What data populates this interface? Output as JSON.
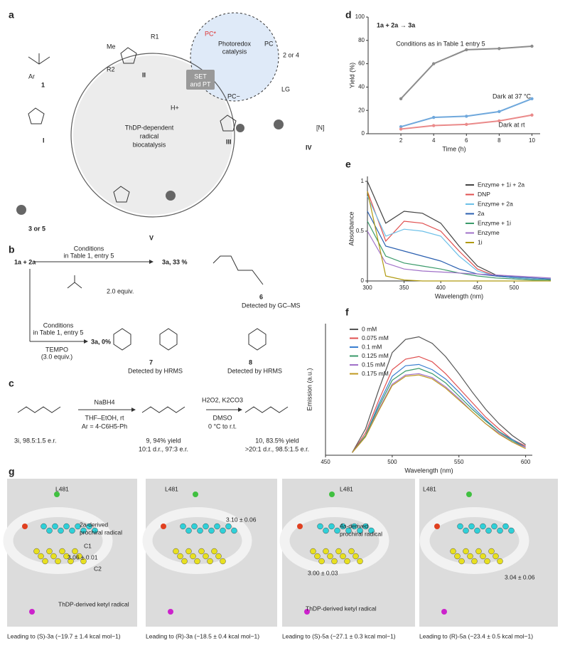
{
  "panel_labels": [
    "a",
    "b",
    "c",
    "d",
    "e",
    "f",
    "g"
  ],
  "panel_a": {
    "pc_star": "PC*",
    "photoredox": [
      "Photoredox",
      "catalysis"
    ],
    "pc": "PC",
    "reagent": "2 or 4",
    "lg": "LG",
    "set_pt": [
      "SET",
      "and PT"
    ],
    "pc_minus": "PC−",
    "h_plus": "H+",
    "center": [
      "ThDP-dependent",
      "radical",
      "biocatalysis"
    ],
    "intermediates": [
      "I",
      "II",
      "III",
      "IV",
      "V"
    ],
    "substrate": "1",
    "product": "3 or 5",
    "me": "Me",
    "r1": "R1",
    "r2": "R2",
    "ar": "Ar",
    "n": "[N]"
  },
  "panel_b": {
    "reactants": "1a + 2a",
    "conditions": [
      "Conditions",
      "in Table 1, entry 5"
    ],
    "result1": "3a, 33 %",
    "additive1": "2.0 equiv.",
    "compound6": "6",
    "detect6": "Detected by GC–MS",
    "conditions2": [
      "Conditions",
      "in Table 1, entry 5"
    ],
    "tempo": [
      "TEMPO",
      "(3.0 equiv.)"
    ],
    "result2": "3a, 0%",
    "compound7": "7",
    "detect7": "Detected by HRMS",
    "compound8": "8",
    "detect8": "Detected by HRMS"
  },
  "panel_c": {
    "start": "3i, 98.5:1.5 e.r.",
    "step1": [
      "NaBH4",
      "THF–EtOH, rt",
      "Ar = 4-C6H5-Ph"
    ],
    "mid": [
      "9, 94% yield",
      "10:1 d.r., 97:3 e.r."
    ],
    "step2": [
      "H2O2, K2CO3",
      "DMSO",
      "0 °C to r.t."
    ],
    "end": [
      "10, 83.5% yield",
      ">20:1 d.r., 98.5:1.5 e.r."
    ]
  },
  "chart_data": [
    {
      "type": "line",
      "title": "1a + 2a → 3a",
      "x_label": "Time (h)",
      "y_label": "Yield (%)",
      "x": [
        2,
        4,
        6,
        8,
        10
      ],
      "xlim": [
        0,
        10.5
      ],
      "xticks": [
        2,
        4,
        6,
        8,
        10
      ],
      "ylim": [
        0,
        100
      ],
      "yticks": [
        0,
        20,
        40,
        60,
        80,
        100
      ],
      "series": [
        {
          "name": "Conditions as in Table 1 entry 5",
          "color": "#8c8c8c",
          "values": [
            30,
            60,
            72,
            73,
            75
          ]
        },
        {
          "name": "Dark at 37 °C",
          "color": "#6fa8dc",
          "values": [
            6,
            14,
            15,
            19,
            30
          ]
        },
        {
          "name": "Dark at rt",
          "color": "#ea8a8a",
          "values": [
            4,
            7,
            8,
            11,
            16
          ]
        }
      ]
    },
    {
      "type": "line",
      "x_label": "Wavelength (nm)",
      "y_label": "Absorbance",
      "x": [
        300,
        325,
        350,
        375,
        400,
        425,
        450,
        475,
        500,
        525,
        550
      ],
      "xlim": [
        300,
        550
      ],
      "xticks": [
        300,
        350,
        400,
        450,
        500
      ],
      "ylim": [
        0,
        1.05
      ],
      "yticks": [
        0,
        0.5,
        1
      ],
      "series": [
        {
          "name": "Enzyme + 1i + 2a",
          "color": "#444444",
          "values": [
            1.0,
            0.58,
            0.7,
            0.68,
            0.58,
            0.35,
            0.15,
            0.06,
            0.03,
            0.02,
            0.01
          ]
        },
        {
          "name": "DNP",
          "color": "#e05050",
          "values": [
            0.9,
            0.4,
            0.6,
            0.58,
            0.5,
            0.3,
            0.12,
            0.05,
            0.03,
            0.02,
            0.01
          ]
        },
        {
          "name": "Enzyme + 2a",
          "color": "#6cc0e8",
          "values": [
            0.85,
            0.45,
            0.52,
            0.5,
            0.45,
            0.25,
            0.1,
            0.05,
            0.03,
            0.02,
            0.01
          ]
        },
        {
          "name": "2a",
          "color": "#2a5fb0",
          "values": [
            0.7,
            0.35,
            0.3,
            0.25,
            0.2,
            0.12,
            0.07,
            0.05,
            0.04,
            0.03,
            0.02
          ]
        },
        {
          "name": "Enzyme + 1i",
          "color": "#3a9a6a",
          "values": [
            0.6,
            0.25,
            0.18,
            0.15,
            0.12,
            0.08,
            0.05,
            0.03,
            0.02,
            0.01,
            0.01
          ]
        },
        {
          "name": "Enzyme",
          "color": "#a070c8",
          "values": [
            0.5,
            0.18,
            0.12,
            0.1,
            0.09,
            0.08,
            0.07,
            0.06,
            0.05,
            0.04,
            0.03
          ]
        },
        {
          "name": "1i",
          "color": "#b09a10",
          "values": [
            0.9,
            0.05,
            0.01,
            0,
            0,
            0,
            0,
            0,
            0,
            0,
            0
          ]
        }
      ]
    },
    {
      "type": "line",
      "x_label": "Wavelength (nm)",
      "y_label": "Emission (a.u.)",
      "x": [
        470,
        480,
        490,
        500,
        510,
        520,
        530,
        540,
        550,
        560,
        570,
        580,
        590,
        600
      ],
      "xlim": [
        450,
        605
      ],
      "xticks": [
        450,
        500,
        550,
        600
      ],
      "ylim": [
        0,
        1
      ],
      "series": [
        {
          "name": "0 mM",
          "color": "#555555",
          "values": [
            0.02,
            0.2,
            0.5,
            0.78,
            0.88,
            0.9,
            0.85,
            0.75,
            0.62,
            0.48,
            0.35,
            0.24,
            0.15,
            0.08
          ]
        },
        {
          "name": "0.075 mM",
          "color": "#e05050",
          "values": [
            0.02,
            0.17,
            0.42,
            0.65,
            0.73,
            0.75,
            0.71,
            0.62,
            0.51,
            0.4,
            0.29,
            0.2,
            0.12,
            0.07
          ]
        },
        {
          "name": "0.1 mM",
          "color": "#3a7fd0",
          "values": [
            0.02,
            0.15,
            0.39,
            0.6,
            0.68,
            0.69,
            0.65,
            0.58,
            0.48,
            0.37,
            0.27,
            0.18,
            0.12,
            0.06
          ]
        },
        {
          "name": "0.125 mM",
          "color": "#3a9a6a",
          "values": [
            0.02,
            0.15,
            0.37,
            0.57,
            0.64,
            0.66,
            0.62,
            0.55,
            0.45,
            0.35,
            0.26,
            0.18,
            0.11,
            0.06
          ]
        },
        {
          "name": "0.15 mM",
          "color": "#a070c8",
          "values": [
            0.02,
            0.14,
            0.35,
            0.54,
            0.61,
            0.62,
            0.59,
            0.52,
            0.43,
            0.33,
            0.24,
            0.17,
            0.1,
            0.06
          ]
        },
        {
          "name": "0.175 mM",
          "color": "#c09a20",
          "values": [
            0.02,
            0.14,
            0.34,
            0.53,
            0.6,
            0.61,
            0.58,
            0.51,
            0.42,
            0.33,
            0.24,
            0.16,
            0.1,
            0.05
          ]
        }
      ]
    }
  ],
  "panel_g": {
    "views": [
      {
        "labels": [
          "L481",
          "2a-derived",
          "prochiral radical",
          "C1",
          "3.06 ± 0.01",
          "C2",
          "ThDP-derived ketyl radical"
        ],
        "caption": "Leading to (S)-3a (−19.7 ± 1.4 kcal mol−1)"
      },
      {
        "labels": [
          "L481",
          "3.10 ± 0.06"
        ],
        "caption": "Leading to (R)-3a (−18.5 ± 0.4 kcal mol−1)"
      },
      {
        "labels": [
          "L481",
          "4a-derived",
          "prochiral radical",
          "3.00 ± 0.03",
          "ThDP-derived ketyl radical"
        ],
        "caption": "Leading to (S)-5a (−27.1 ± 0.3 kcal mol−1)"
      },
      {
        "labels": [
          "L481",
          "3.04 ± 0.06"
        ],
        "caption": "Leading to (R)-5a (−23.4 ± 0.5 kcal mol−1)"
      }
    ]
  }
}
